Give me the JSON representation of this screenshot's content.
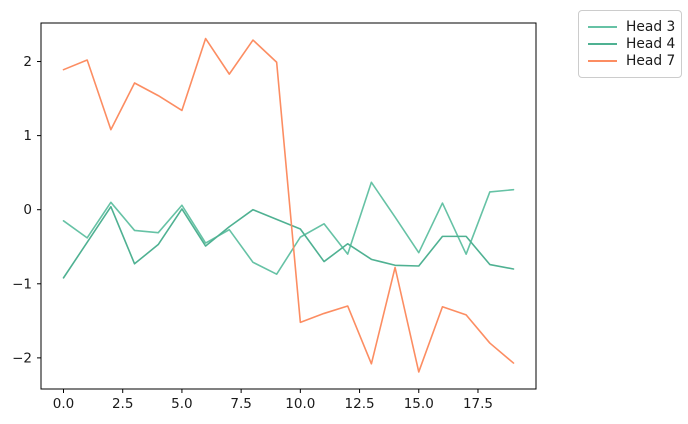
{
  "chart_data": {
    "type": "line",
    "title": "",
    "xlabel": "",
    "ylabel": "",
    "grid": false,
    "x": [
      0,
      1,
      2,
      3,
      4,
      5,
      6,
      7,
      8,
      9,
      10,
      11,
      12,
      13,
      14,
      15,
      16,
      17,
      18,
      19
    ],
    "series": [
      {
        "name": "Head 3",
        "color": "#66c2a5",
        "values": [
          -0.15,
          -0.38,
          0.1,
          -0.28,
          -0.31,
          0.06,
          -0.45,
          -0.27,
          -0.71,
          -0.87,
          -0.37,
          -0.19,
          -0.6,
          0.37,
          -0.1,
          -0.58,
          0.09,
          -0.6,
          0.24,
          0.27
        ]
      },
      {
        "name": "Head 4",
        "color": "#4fb192",
        "values": [
          -0.92,
          -0.44,
          0.04,
          -0.73,
          -0.47,
          0.01,
          -0.49,
          -0.23,
          0.0,
          -0.13,
          -0.26,
          -0.7,
          -0.46,
          -0.67,
          -0.75,
          -0.76,
          -0.36,
          -0.36,
          -0.74,
          -0.8
        ]
      },
      {
        "name": "Head 7",
        "color": "#fc8d62",
        "values": [
          1.89,
          2.02,
          1.08,
          1.71,
          1.54,
          1.34,
          2.31,
          1.83,
          2.29,
          1.99,
          -1.52,
          -1.4,
          -1.3,
          -2.08,
          -0.78,
          -2.19,
          -1.31,
          -1.42,
          -1.8,
          -2.07
        ]
      }
    ],
    "xlim": [
      -0.95,
      19.95
    ],
    "ylim": [
      -2.42,
      2.52
    ],
    "xticks": {
      "values": [
        0,
        2.5,
        5,
        7.5,
        10,
        12.5,
        15,
        17.5
      ],
      "labels": [
        "0.0",
        "2.5",
        "5.0",
        "7.5",
        "10.0",
        "12.5",
        "15.0",
        "17.5"
      ]
    },
    "yticks": {
      "values": [
        -2,
        -1,
        0,
        1,
        2
      ],
      "labels": [
        "−2",
        "−1",
        "0",
        "1",
        "2"
      ]
    },
    "legend": {
      "position": "outside-top-right",
      "entries": [
        "Head 3",
        "Head 4",
        "Head 7"
      ]
    }
  },
  "style": {
    "background": "#ffffff",
    "axis_color": "#000000",
    "tick_label_color": "#1a1a1a",
    "legend_border_color": "#cccccc",
    "line_width": 1.6
  }
}
